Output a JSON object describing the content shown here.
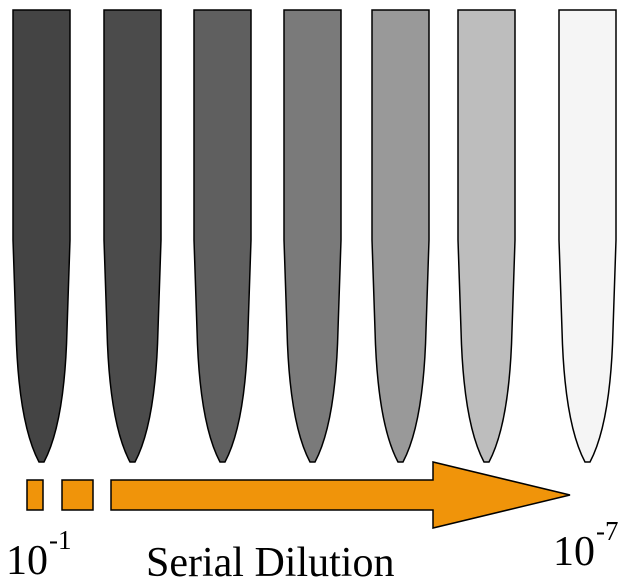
{
  "start_label": {
    "base": "10",
    "exponent": "-1"
  },
  "caption": "Serial Dilution",
  "end_label": {
    "base": "10",
    "exponent": "-7"
  }
}
